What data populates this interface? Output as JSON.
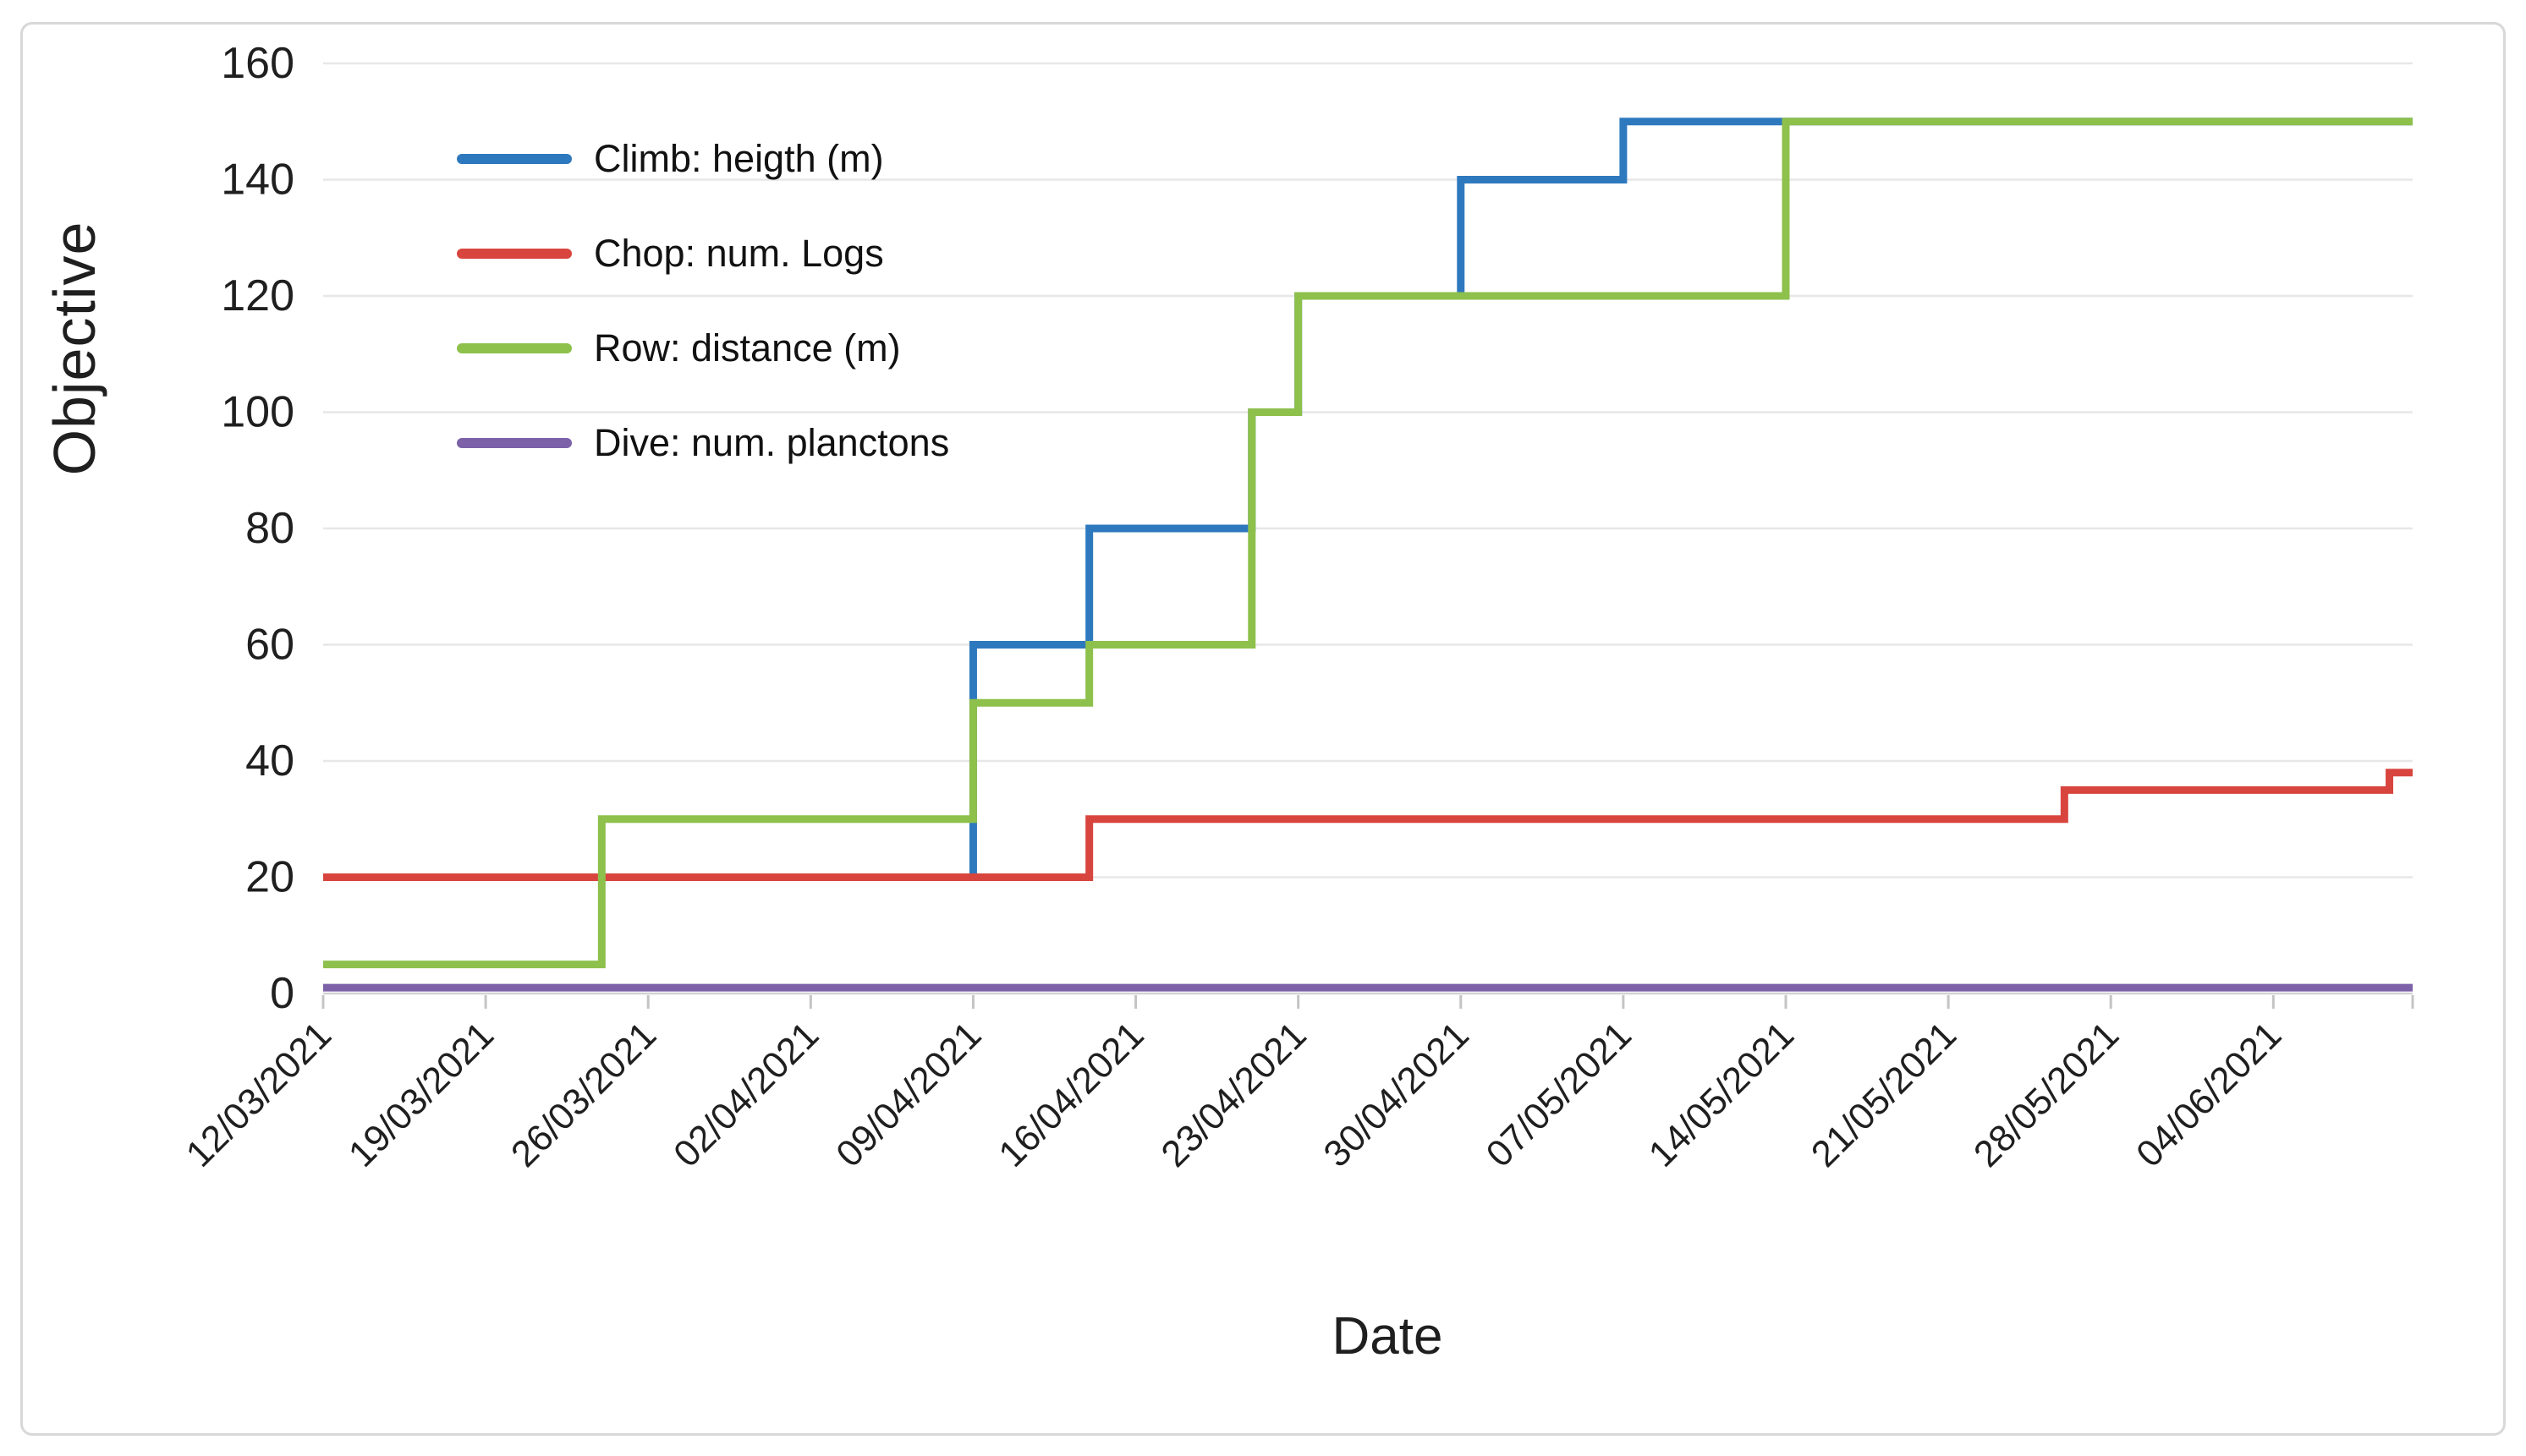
{
  "figure": {
    "background_color": "#FFFFFF",
    "frame_border_color": "#D8D8D8",
    "gridline_color": "#E7E7E7",
    "axis_line_color": "#D2D2D2",
    "tick_mark_color": "#C4C4C4",
    "text_color": "#1F1F1F"
  },
  "chart_data": {
    "type": "line",
    "step_interpolation": "step-after",
    "title": "",
    "xlabel": "Date",
    "ylabel": "Objective",
    "ylim": [
      0,
      160
    ],
    "y_ticks": [
      0,
      20,
      40,
      60,
      80,
      100,
      120,
      140,
      160
    ],
    "grid": "horizontal",
    "legend_position": "inside-top-left",
    "x_domain_days": [
      0,
      90
    ],
    "x_ticks": [
      {
        "day": 0,
        "label": "12/03/2021"
      },
      {
        "day": 7,
        "label": "19/03/2021"
      },
      {
        "day": 14,
        "label": "26/03/2021"
      },
      {
        "day": 21,
        "label": "02/04/2021"
      },
      {
        "day": 28,
        "label": "09/04/2021"
      },
      {
        "day": 35,
        "label": "16/04/2021"
      },
      {
        "day": 42,
        "label": "23/04/2021"
      },
      {
        "day": 49,
        "label": "30/04/2021"
      },
      {
        "day": 56,
        "label": "07/05/2021"
      },
      {
        "day": 63,
        "label": "14/05/2021"
      },
      {
        "day": 70,
        "label": "21/05/2021"
      },
      {
        "day": 77,
        "label": "28/05/2021"
      },
      {
        "day": 84,
        "label": "04/06/2021"
      }
    ],
    "unlabeled_tick_days": [
      90
    ],
    "series": [
      {
        "name": "Climb: heigth (m)",
        "color": "#2E79BE",
        "points": [
          {
            "day": 0,
            "date": "12/03/2021",
            "value": 20
          },
          {
            "day": 28,
            "date": "09/04/2021",
            "value": 60
          },
          {
            "day": 33,
            "date": "14/04/2021",
            "value": 80
          },
          {
            "day": 40,
            "date": "21/04/2021",
            "value": 100
          },
          {
            "day": 42,
            "date": "23/04/2021",
            "value": 120
          },
          {
            "day": 49,
            "date": "30/04/2021",
            "value": 140
          },
          {
            "day": 56,
            "date": "07/05/2021",
            "value": 150
          },
          {
            "day": 90,
            "date": "10/06/2021",
            "value": 150
          }
        ]
      },
      {
        "name": "Chop: num. Logs",
        "color": "#D8453E",
        "points": [
          {
            "day": 0,
            "date": "12/03/2021",
            "value": 20
          },
          {
            "day": 33,
            "date": "14/04/2021",
            "value": 30
          },
          {
            "day": 75,
            "date": "26/05/2021",
            "value": 35
          },
          {
            "day": 89,
            "date": "09/06/2021",
            "value": 38
          },
          {
            "day": 90,
            "date": "10/06/2021",
            "value": 38
          }
        ]
      },
      {
        "name": "Row: distance (m)",
        "color": "#8EC04C",
        "points": [
          {
            "day": 0,
            "date": "12/03/2021",
            "value": 5
          },
          {
            "day": 12,
            "date": "24/03/2021",
            "value": 30
          },
          {
            "day": 28,
            "date": "09/04/2021",
            "value": 50
          },
          {
            "day": 33,
            "date": "14/04/2021",
            "value": 60
          },
          {
            "day": 40,
            "date": "21/04/2021",
            "value": 100
          },
          {
            "day": 42,
            "date": "23/04/2021",
            "value": 120
          },
          {
            "day": 63,
            "date": "14/05/2021",
            "value": 150
          },
          {
            "day": 90,
            "date": "10/06/2021",
            "value": 150
          }
        ]
      },
      {
        "name": "Dive: num. planctons",
        "color": "#7C61A9",
        "points": [
          {
            "day": 0,
            "date": "12/03/2021",
            "value": 1
          },
          {
            "day": 90,
            "date": "10/06/2021",
            "value": 1
          }
        ]
      }
    ]
  }
}
